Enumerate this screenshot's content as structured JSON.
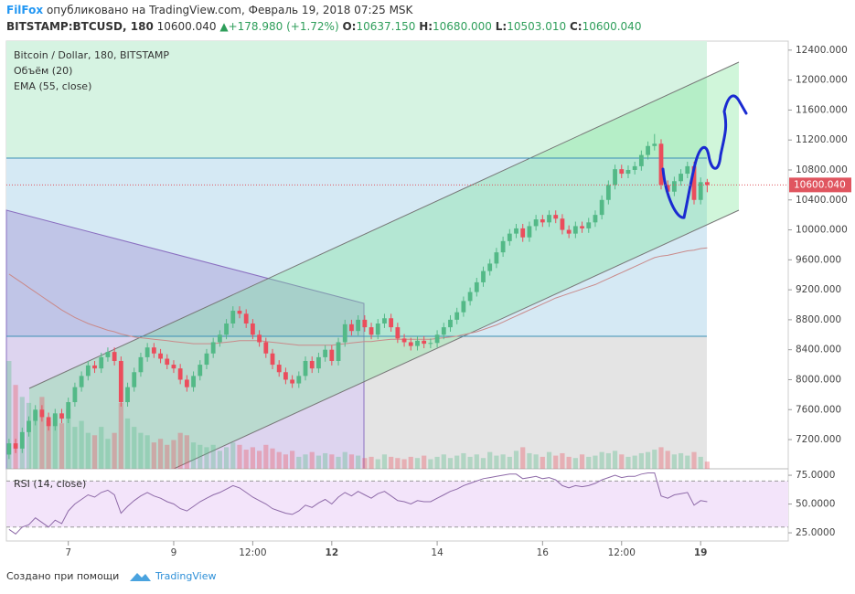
{
  "header": {
    "brand": "FilFox",
    "published": "опубликовано на TradingView.com, Февраль 19, 2018 07:25 MSK",
    "symbol": "BITSTAMP:BTCUSD, 180",
    "last": "10600.040",
    "change": "+178.980 (+1.72%)",
    "o_label": "O:",
    "o": "10637.150",
    "h_label": "H:",
    "h": "10680.000",
    "l_label": "L:",
    "l": "10503.010",
    "c_label": "C:",
    "c": "10600.040"
  },
  "chart_data": [
    {
      "type": "candlestick",
      "title": "Bitcoin / Dollar, 180, BITSTAMP",
      "up_color": "#53b987",
      "down_color": "#eb4d5c",
      "open": [
        7000,
        7150,
        7080,
        7300,
        7450,
        7600,
        7500,
        7380,
        7550,
        7480,
        7700,
        7900,
        8050,
        8190,
        8150,
        8300,
        8370,
        8250,
        7700,
        7900,
        8100,
        8300,
        8430,
        8350,
        8280,
        8200,
        8150,
        8000,
        7900,
        8050,
        8200,
        8350,
        8500,
        8600,
        8750,
        8920,
        8880,
        8750,
        8600,
        8500,
        8350,
        8200,
        8100,
        8000,
        7950,
        8050,
        8250,
        8150,
        8300,
        8400,
        8250,
        8500,
        8740,
        8650,
        8800,
        8700,
        8600,
        8750,
        8820,
        8700,
        8550,
        8500,
        8450,
        8520,
        8480,
        8490,
        8600,
        8700,
        8800,
        8900,
        9050,
        9170,
        9300,
        9450,
        9550,
        9700,
        9850,
        9950,
        10020,
        9900,
        10050,
        10140,
        10100,
        10200,
        10150,
        10000,
        9950,
        10050,
        10020,
        10100,
        10200,
        10400,
        10600,
        10810,
        10750,
        10800,
        10850,
        11000,
        11120,
        11150,
        10600,
        10510,
        10650,
        10750,
        10850,
        10400,
        10637.15
      ],
      "high": [
        7210,
        7210,
        7360,
        7510,
        7660,
        7660,
        7560,
        7610,
        7610,
        7760,
        7960,
        8110,
        8250,
        8250,
        8360,
        8430,
        8430,
        8310,
        7960,
        8160,
        8360,
        8490,
        8490,
        8410,
        8340,
        8260,
        8210,
        8060,
        8110,
        8260,
        8410,
        8560,
        8660,
        8810,
        8980,
        8980,
        8940,
        8810,
        8660,
        8560,
        8410,
        8260,
        8160,
        8060,
        8110,
        8310,
        8310,
        8360,
        8460,
        8460,
        8560,
        8800,
        8800,
        8860,
        8860,
        8760,
        8810,
        8880,
        8880,
        8760,
        8610,
        8560,
        8580,
        8580,
        8550,
        8660,
        8760,
        8860,
        8960,
        9110,
        9230,
        9360,
        9510,
        9610,
        9760,
        9910,
        10010,
        10080,
        10080,
        10110,
        10200,
        10200,
        10260,
        10260,
        10210,
        10060,
        10110,
        10110,
        10160,
        10260,
        10460,
        10660,
        10870,
        10870,
        10860,
        10910,
        11060,
        11180,
        11280,
        11210,
        10660,
        10710,
        10810,
        10910,
        10910,
        10700,
        10680
      ],
      "low": [
        6940,
        7020,
        7020,
        7240,
        7390,
        7440,
        7320,
        7320,
        7420,
        7420,
        7640,
        7840,
        7990,
        8090,
        8090,
        8240,
        8190,
        7640,
        7640,
        7840,
        8040,
        8240,
        8290,
        8220,
        8140,
        8090,
        7940,
        7840,
        7840,
        7990,
        8140,
        8290,
        8440,
        8540,
        8690,
        8820,
        8690,
        8540,
        8440,
        8290,
        8140,
        8040,
        7940,
        7890,
        7890,
        7990,
        8090,
        8090,
        8240,
        8190,
        8190,
        8440,
        8590,
        8590,
        8640,
        8540,
        8540,
        8690,
        8640,
        8490,
        8440,
        8390,
        8390,
        8420,
        8420,
        8430,
        8540,
        8640,
        8740,
        8840,
        8990,
        9110,
        9240,
        9390,
        9490,
        9640,
        9790,
        9890,
        9840,
        9840,
        9990,
        10040,
        10040,
        10090,
        9940,
        9890,
        9890,
        9960,
        9960,
        10040,
        10140,
        10340,
        10540,
        10690,
        10690,
        10740,
        10790,
        10940,
        11060,
        10540,
        10450,
        10450,
        10590,
        10690,
        10340,
        10340,
        10503.01
      ],
      "close": [
        7150,
        7080,
        7300,
        7450,
        7600,
        7500,
        7380,
        7550,
        7480,
        7700,
        7900,
        8050,
        8190,
        8150,
        8300,
        8370,
        8250,
        7700,
        7900,
        8100,
        8300,
        8430,
        8350,
        8280,
        8200,
        8150,
        8000,
        7900,
        8050,
        8200,
        8350,
        8500,
        8600,
        8750,
        8920,
        8880,
        8750,
        8600,
        8500,
        8350,
        8200,
        8100,
        8000,
        7950,
        8050,
        8250,
        8150,
        8300,
        8400,
        8250,
        8500,
        8740,
        8650,
        8800,
        8700,
        8600,
        8750,
        8820,
        8700,
        8550,
        8500,
        8450,
        8520,
        8480,
        8490,
        8600,
        8700,
        8800,
        8900,
        9050,
        9170,
        9300,
        9450,
        9550,
        9700,
        9850,
        9950,
        10020,
        9900,
        10050,
        10140,
        10100,
        10200,
        10150,
        10000,
        9950,
        10050,
        10020,
        10100,
        10200,
        10400,
        10600,
        10810,
        10750,
        10800,
        10850,
        11000,
        11120,
        11150,
        10600,
        10510,
        10650,
        10750,
        10850,
        10400,
        10637.15,
        10600.04
      ],
      "volume": {
        "name": "Объём (20)",
        "values": [
          90,
          70,
          60,
          55,
          48,
          60,
          40,
          45,
          38,
          50,
          35,
          40,
          30,
          28,
          35,
          25,
          30,
          55,
          42,
          35,
          30,
          28,
          22,
          25,
          20,
          24,
          30,
          28,
          22,
          20,
          18,
          20,
          15,
          18,
          22,
          20,
          16,
          18,
          15,
          20,
          17,
          14,
          12,
          15,
          10,
          12,
          14,
          11,
          13,
          12,
          10,
          14,
          12,
          11,
          9,
          10,
          8,
          12,
          10,
          9,
          8,
          10,
          9,
          11,
          8,
          10,
          12,
          9,
          11,
          13,
          10,
          12,
          9,
          14,
          11,
          12,
          10,
          15,
          18,
          13,
          12,
          10,
          14,
          11,
          13,
          10,
          9,
          12,
          10,
          11,
          14,
          13,
          15,
          12,
          10,
          11,
          13,
          14,
          16,
          18,
          15,
          12,
          13,
          11,
          14,
          10,
          6
        ]
      },
      "ema": {
        "name": "EMA (55, close)",
        "color": "#c98a8a",
        "values": [
          9410,
          9350,
          9290,
          9230,
          9170,
          9110,
          9050,
          8990,
          8930,
          8880,
          8830,
          8790,
          8750,
          8720,
          8690,
          8660,
          8640,
          8610,
          8590,
          8570,
          8560,
          8550,
          8540,
          8530,
          8520,
          8510,
          8500,
          8490,
          8480,
          8480,
          8480,
          8480,
          8490,
          8500,
          8510,
          8520,
          8520,
          8520,
          8520,
          8510,
          8500,
          8490,
          8480,
          8470,
          8460,
          8460,
          8460,
          8460,
          8460,
          8460,
          8470,
          8480,
          8490,
          8500,
          8510,
          8510,
          8520,
          8530,
          8540,
          8540,
          8540,
          8540,
          8540,
          8540,
          8540,
          8550,
          8560,
          8570,
          8580,
          8600,
          8620,
          8640,
          8670,
          8700,
          8730,
          8770,
          8810,
          8850,
          8890,
          8930,
          8970,
          9010,
          9050,
          9090,
          9120,
          9150,
          9180,
          9210,
          9240,
          9270,
          9310,
          9350,
          9390,
          9430,
          9470,
          9510,
          9550,
          9590,
          9630,
          9650,
          9660,
          9680,
          9700,
          9720,
          9730,
          9750,
          9760
        ]
      },
      "price_line": {
        "value": 10600.04,
        "label": "10600.040"
      },
      "xlim": [
        -0.4,
        118.3
      ],
      "ylim": [
        6810,
        12520
      ],
      "xticks": [
        {
          "value": 9,
          "label": "7"
        },
        {
          "value": 25,
          "label": "9"
        },
        {
          "value": 37,
          "label": "12:00"
        },
        {
          "value": 49,
          "label": "12"
        },
        {
          "value": 65,
          "label": "14"
        },
        {
          "value": 81,
          "label": "16"
        },
        {
          "value": 93,
          "label": "12:00"
        },
        {
          "value": 105,
          "label": "19"
        }
      ],
      "yticks": [
        {
          "value": 7200,
          "label": "7200.000"
        },
        {
          "value": 7600,
          "label": "7600.000"
        },
        {
          "value": 8000,
          "label": "8000.000"
        },
        {
          "value": 8400,
          "label": "8400.000"
        },
        {
          "value": 8800,
          "label": "8800.000"
        },
        {
          "value": 9200,
          "label": "9200.000"
        },
        {
          "value": 9600,
          "label": "9600.000"
        },
        {
          "value": 10000,
          "label": "10000.000"
        },
        {
          "value": 10400,
          "label": "10400.000"
        },
        {
          "value": 10800,
          "label": "10800.000"
        },
        {
          "value": 11200,
          "label": "11200.000"
        },
        {
          "value": 11600,
          "label": "11600.000"
        },
        {
          "value": 12000,
          "label": "12000.000"
        },
        {
          "value": 12400,
          "label": "12400.000"
        }
      ]
    },
    {
      "type": "line",
      "title": "RSI (14, close)",
      "color": "#8e6aa8",
      "band": [
        30,
        70
      ],
      "values": [
        28,
        24,
        30,
        32,
        38,
        34,
        30,
        36,
        33,
        44,
        50,
        54,
        58,
        56,
        60,
        62,
        58,
        42,
        48,
        53,
        57,
        60,
        57,
        55,
        52,
        50,
        46,
        44,
        48,
        52,
        55,
        58,
        60,
        63,
        66,
        64,
        60,
        56,
        53,
        50,
        46,
        44,
        42,
        41,
        44,
        49,
        47,
        51,
        54,
        50,
        56,
        60,
        57,
        61,
        58,
        55,
        59,
        61,
        57,
        53,
        52,
        50,
        53,
        52,
        52,
        55,
        58,
        61,
        63,
        66,
        68,
        70,
        72,
        73,
        74,
        75,
        76,
        76,
        72,
        73,
        74,
        72,
        73,
        71,
        66,
        64,
        66,
        65,
        66,
        68,
        71,
        73,
        75,
        73,
        74,
        74,
        76,
        77,
        77,
        57,
        55,
        58,
        59,
        60,
        49,
        53,
        52
      ],
      "ylim": [
        17.9,
        79
      ],
      "yticks": [
        {
          "value": 25,
          "label": "25.0000"
        },
        {
          "value": 50,
          "label": "50.0000"
        },
        {
          "value": 75,
          "label": "75.0000"
        }
      ]
    }
  ],
  "footer": {
    "text": "Создано при помощи",
    "brand": "TradingView"
  }
}
